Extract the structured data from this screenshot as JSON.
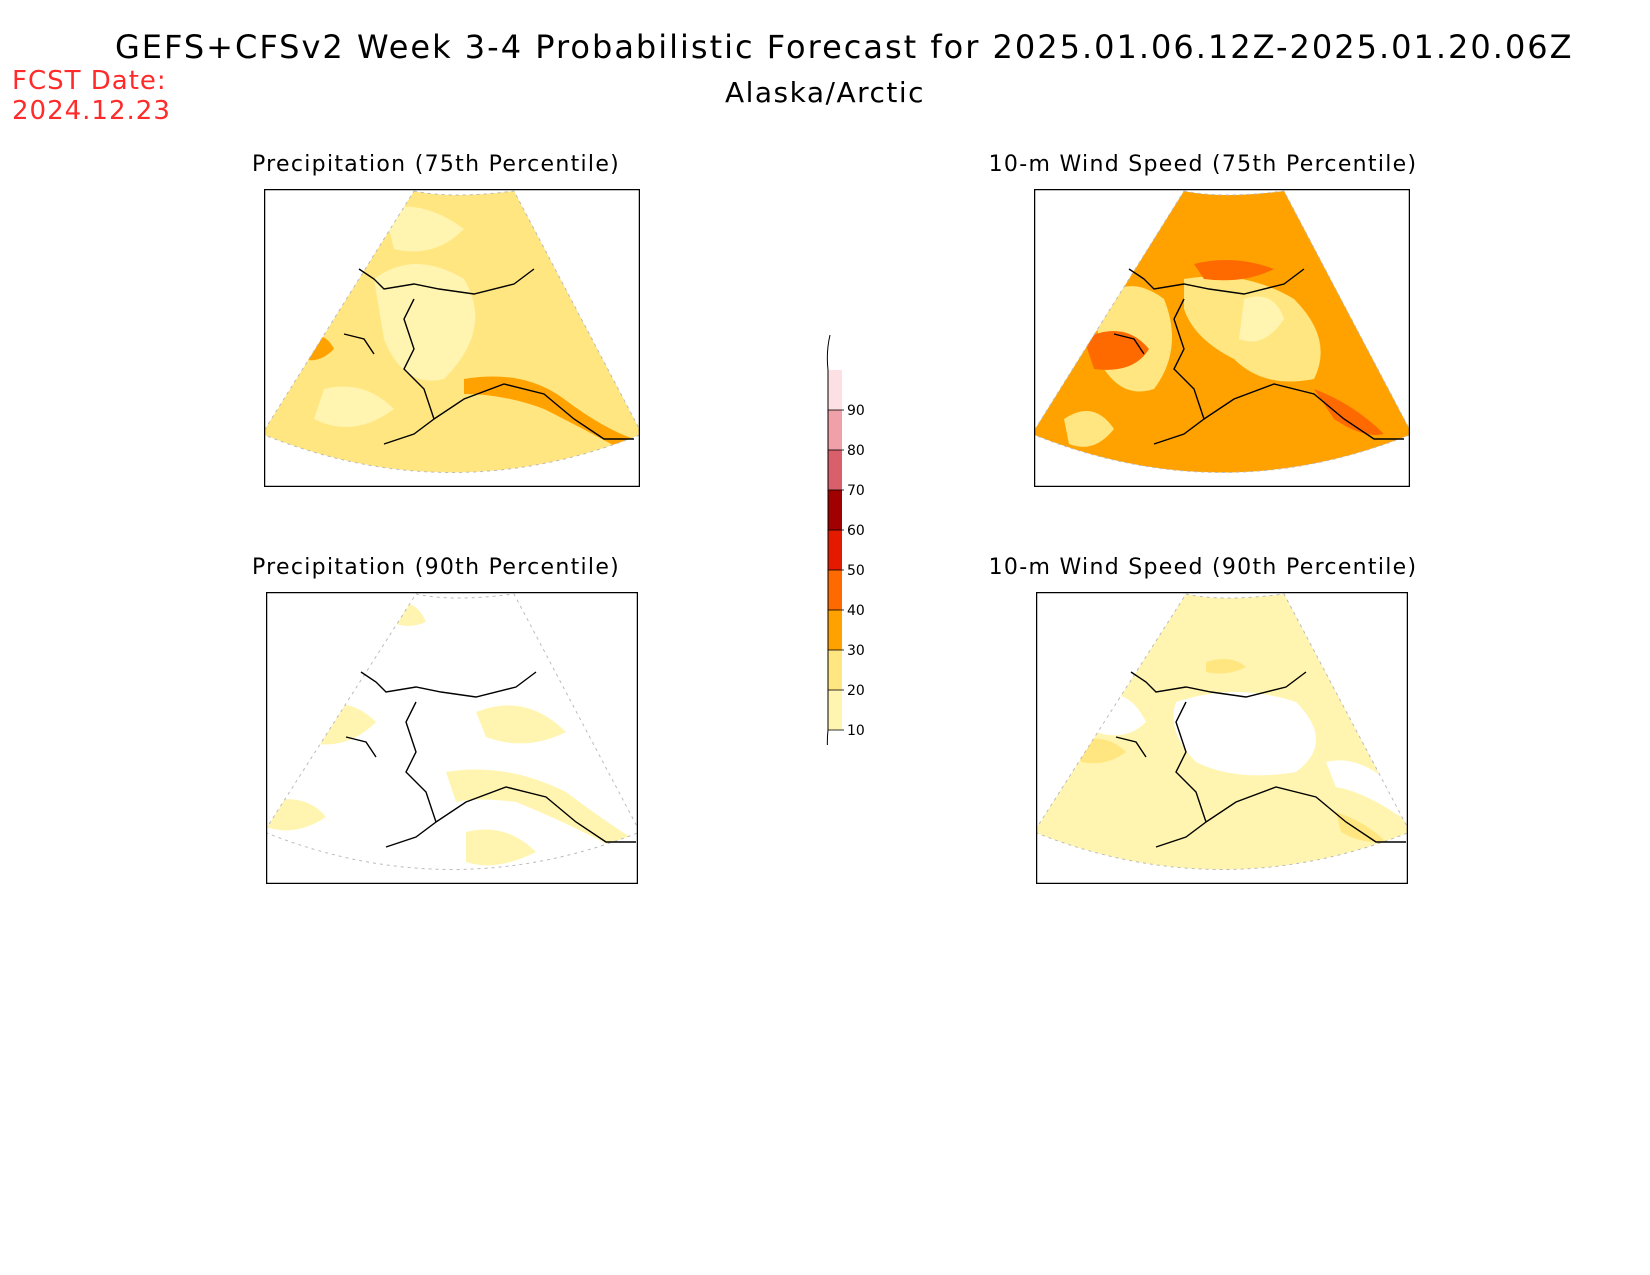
{
  "title": "GEFS+CFSv2 Week 3-4 Probabilistic Forecast for 2025.01.06.12Z-2025.01.20.06Z",
  "subtitle": "Alaska/Arctic",
  "fcst_label": "FCST Date:",
  "fcst_date": "2024.12.23",
  "panels": [
    {
      "title": "Precipitation (75th Percentile)",
      "base_color": "#ffe680"
    },
    {
      "title": "10-m Wind Speed (75th Percentile)",
      "base_color": "#ffa200"
    },
    {
      "title": "Precipitation (90th Percentile)",
      "base_color": "#ffffff"
    },
    {
      "title": "10-m Wind Speed (90th Percentile)",
      "base_color": "#fff5b0"
    }
  ],
  "colorbar": {
    "labels": [
      "10",
      "20",
      "30",
      "40",
      "50",
      "60",
      "70",
      "80",
      "90"
    ],
    "colors": [
      "#fff5b0",
      "#ffe680",
      "#ffa200",
      "#ff6a00",
      "#e31a00",
      "#a00000",
      "#d9606a",
      "#f0a0a8",
      "#fde0e4"
    ]
  }
}
